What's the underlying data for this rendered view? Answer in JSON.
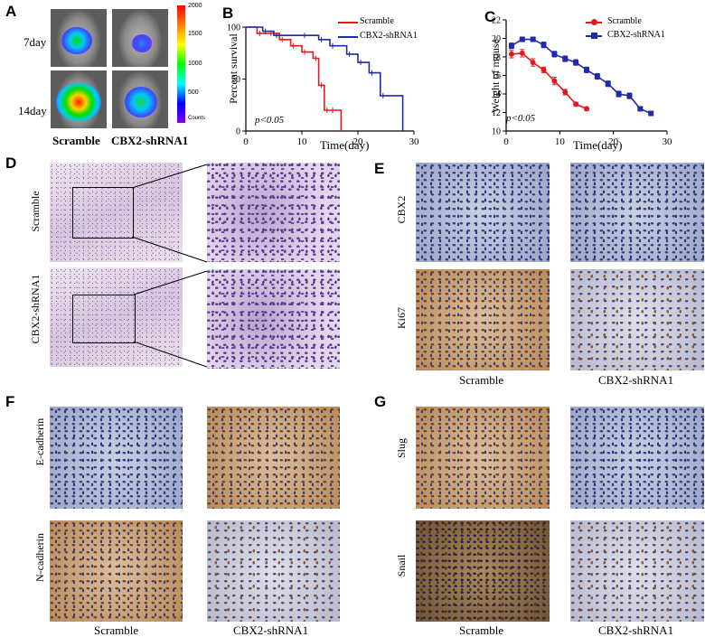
{
  "panels": {
    "A": {
      "label": "A",
      "row_labels": [
        "7day",
        "14day"
      ],
      "col_labels": [
        "Scramble",
        "CBX2-shRNA1"
      ],
      "colorbar_ticks": [
        "2000",
        "1500",
        "1000",
        "500",
        "Counts"
      ],
      "colorbar_colors": [
        "#ff0000",
        "#ffff00",
        "#00ff00",
        "#00ffff",
        "#0000ff",
        "#8000ff"
      ]
    },
    "B": {
      "label": "B",
      "ylabel": "Percent survival",
      "xlabel": "Time(day)",
      "annotation": "p<0.05",
      "legend": [
        "Scramble",
        "CBX2-shRNA1"
      ]
    },
    "C": {
      "label": "C",
      "ylabel": "Weight of mouse",
      "xlabel": "Time(day)",
      "annotation": "p<0.05",
      "legend": [
        "Scramble",
        "CBX2-shRNA1"
      ]
    },
    "D": {
      "label": "D",
      "row_labels": [
        "Scramble",
        "CBX2-shRNA1"
      ]
    },
    "E": {
      "label": "E",
      "row_labels": [
        "CBX2",
        "Ki67"
      ],
      "col_labels": [
        "Scramble",
        "CBX2-shRNA1"
      ]
    },
    "F": {
      "label": "F",
      "row_labels": [
        "E-cadherin",
        "N-cadherin"
      ],
      "col_labels": [
        "Scramble",
        "CBX2-shRNA1"
      ]
    },
    "G": {
      "label": "G",
      "row_labels": [
        "Slug",
        "Snail"
      ],
      "col_labels": [
        "Scramble",
        "CBX2-shRNA1"
      ]
    }
  },
  "chart_data": [
    {
      "type": "line",
      "subtype": "kaplan-meier",
      "xlabel": "Time(day)",
      "ylabel": "Percent survival",
      "xlim": [
        0,
        30
      ],
      "ylim": [
        0,
        100
      ],
      "xticks": [
        0,
        10,
        20,
        30
      ],
      "yticks": [
        0,
        50,
        100
      ],
      "annotation": "p<0.05",
      "legend_position": "top-right",
      "series": [
        {
          "name": "Scramble",
          "color": "#e31a1c",
          "x": [
            0,
            2,
            4,
            6,
            8,
            10,
            12,
            13,
            14,
            15,
            17
          ],
          "y": [
            100,
            94,
            94,
            88,
            82,
            76,
            70,
            44,
            20,
            20,
            0
          ]
        },
        {
          "name": "CBX2-shRNA1",
          "color": "#1f2aa8",
          "x": [
            0,
            3,
            5,
            10,
            13,
            15,
            18,
            20,
            22,
            24,
            28
          ],
          "y": [
            100,
            96,
            92,
            92,
            88,
            82,
            74,
            66,
            56,
            34,
            0
          ]
        }
      ]
    },
    {
      "type": "line",
      "xlabel": "Time(day)",
      "ylabel": "Weight of mouse",
      "xlim": [
        0,
        30
      ],
      "ylim": [
        10,
        22
      ],
      "xticks": [
        0,
        10,
        20,
        30
      ],
      "yticks": [
        10,
        12,
        14,
        16,
        18,
        20,
        22
      ],
      "annotation": "p<0.05",
      "legend_position": "top-right",
      "series": [
        {
          "name": "Scramble",
          "color": "#e31a1c",
          "marker": "circle",
          "x": [
            1,
            3,
            5,
            7,
            9,
            11,
            13,
            15
          ],
          "y": [
            18.3,
            18.4,
            17.4,
            16.6,
            15.4,
            14.2,
            12.9,
            12.4
          ],
          "err": [
            0.4,
            0.4,
            0.4,
            0.3,
            0.4,
            0.3,
            0.2,
            0.2
          ]
        },
        {
          "name": "CBX2-shRNA1",
          "color": "#1f2aa8",
          "marker": "square",
          "x": [
            1,
            3,
            5,
            7,
            9,
            11,
            13,
            15,
            17,
            19,
            21,
            23,
            25,
            27
          ],
          "y": [
            19.2,
            19.9,
            19.9,
            19.3,
            18.3,
            17.8,
            17.4,
            16.6,
            15.9,
            15.1,
            14.0,
            13.8,
            12.4,
            11.9
          ],
          "err": [
            0.3,
            0.2,
            0.2,
            0.3,
            0.3,
            0.3,
            0.3,
            0.3,
            0.3,
            0.3,
            0.3,
            0.3,
            0.2,
            0.2
          ]
        }
      ]
    }
  ]
}
